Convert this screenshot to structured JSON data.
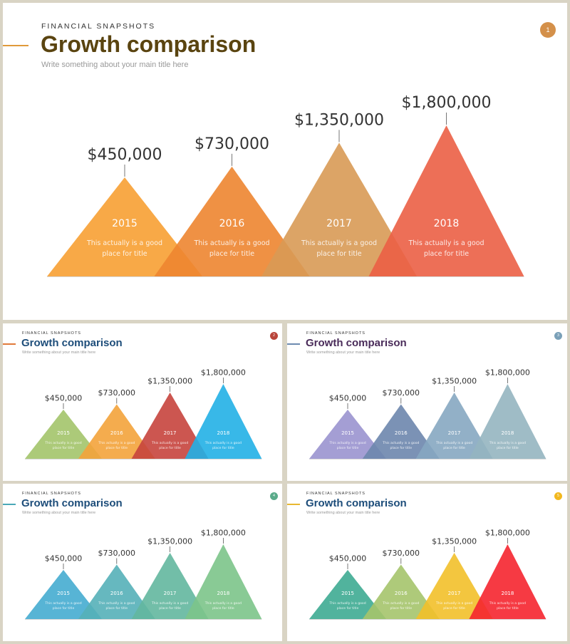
{
  "slides": [
    {
      "eyebrow": "FINANCIAL SNAPSHOTS",
      "title": "Growth comparison",
      "subtitle": "Write something about your main title here",
      "page": "1",
      "title_color": "#5a4410",
      "accent_color": "#e09a3a",
      "badge_color": "#d4904a",
      "caption": "This actually is a good place for title",
      "colors": [
        "#f7a033",
        "#ed8530",
        "#d89a55",
        "#eb5f45"
      ],
      "chart_data": {
        "type": "bar",
        "categories": [
          "2015",
          "2016",
          "2017",
          "2018"
        ],
        "values": [
          450000,
          730000,
          1350000,
          1800000
        ],
        "value_labels": [
          "$450,000",
          "$730,000",
          "$1,350,000",
          "$1,800,000"
        ]
      }
    },
    {
      "eyebrow": "FINANCIAL SNAPSHOTS",
      "title": "Growth comparison",
      "subtitle": "Write something about your main title here",
      "page": "2",
      "title_color": "#1d4d7a",
      "accent_color": "#e07a3a",
      "badge_color": "#b9453a",
      "caption": "This actually is a good place for title",
      "colors": [
        "#a3c46a",
        "#f3a33b",
        "#c7443d",
        "#22b0e6"
      ],
      "chart_data": {
        "type": "bar",
        "categories": [
          "2015",
          "2016",
          "2017",
          "2018"
        ],
        "values": [
          450000,
          730000,
          1350000,
          1800000
        ],
        "value_labels": [
          "$450,000",
          "$730,000",
          "$1,350,000",
          "$1,800,000"
        ]
      }
    },
    {
      "eyebrow": "FINANCIAL SNAPSHOTS",
      "title": "Growth comparison",
      "subtitle": "Write something about your main title here",
      "page": "3",
      "title_color": "#4a2c5a",
      "accent_color": "#6d8bb0",
      "badge_color": "#7aa0b8",
      "caption": "This actually is a good place for title",
      "colors": [
        "#9a94cf",
        "#6d86ad",
        "#86a7c1",
        "#95b5c0"
      ],
      "chart_data": {
        "type": "bar",
        "categories": [
          "2015",
          "2016",
          "2017",
          "2018"
        ],
        "values": [
          450000,
          730000,
          1350000,
          1800000
        ],
        "value_labels": [
          "$450,000",
          "$730,000",
          "$1,350,000",
          "$1,800,000"
        ]
      }
    },
    {
      "eyebrow": "FINANCIAL SNAPSHOTS",
      "title": "Growth comparison",
      "subtitle": "Write something about your main title here",
      "page": "4",
      "title_color": "#1d4d7a",
      "accent_color": "#4aa8b8",
      "badge_color": "#5aab8a",
      "caption": "This actually is a good place for title",
      "colors": [
        "#45acd0",
        "#55b0b8",
        "#63b79e",
        "#7cc48a"
      ],
      "chart_data": {
        "type": "bar",
        "categories": [
          "2015",
          "2016",
          "2017",
          "2018"
        ],
        "values": [
          450000,
          730000,
          1350000,
          1800000
        ],
        "value_labels": [
          "$450,000",
          "$730,000",
          "$1,350,000",
          "$1,800,000"
        ]
      }
    },
    {
      "eyebrow": "FINANCIAL SNAPSHOTS",
      "title": "Growth comparison",
      "subtitle": "Write something about your main title here",
      "page": "5",
      "title_color": "#1d4d7a",
      "accent_color": "#e8b830",
      "badge_color": "#f2b81e",
      "caption": "This actually is a good place for title",
      "colors": [
        "#3eab92",
        "#a5c46b",
        "#f2c02a",
        "#f5252f"
      ],
      "chart_data": {
        "type": "bar",
        "categories": [
          "2015",
          "2016",
          "2017",
          "2018"
        ],
        "values": [
          450000,
          730000,
          1350000,
          1800000
        ],
        "value_labels": [
          "$450,000",
          "$730,000",
          "$1,350,000",
          "$1,800,000"
        ]
      }
    }
  ]
}
